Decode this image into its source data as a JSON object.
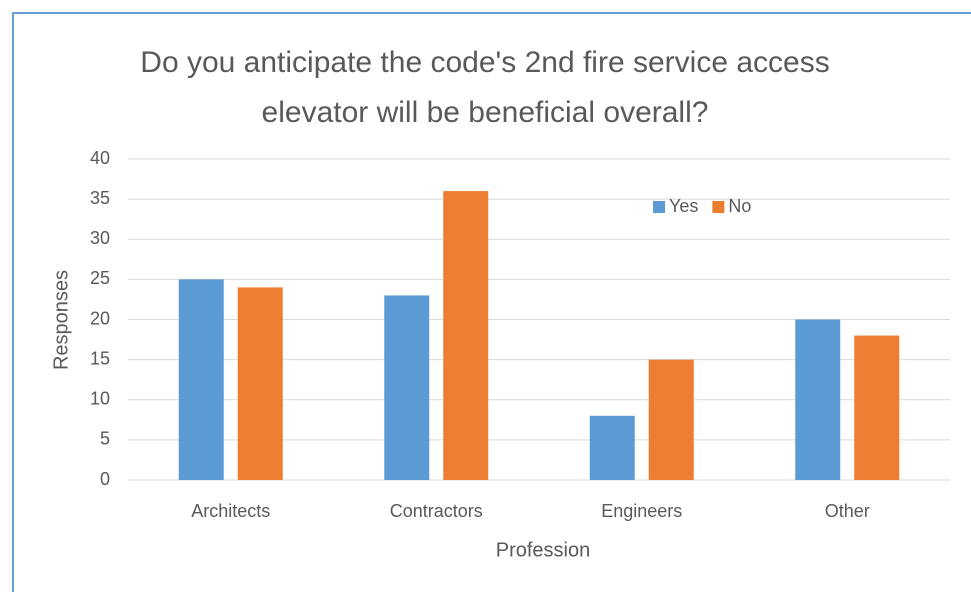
{
  "chart_data": {
    "type": "bar",
    "title": "Do you anticipate the code's 2nd fire service access elevator will be beneficial overall?",
    "x_label": "Profession",
    "y_label": "Responses",
    "categories": [
      "Architects",
      "Contractors",
      "Engineers",
      "Other"
    ],
    "series": [
      {
        "name": "Yes",
        "color": "#5b9bd5",
        "values": [
          25,
          23,
          8,
          20
        ]
      },
      {
        "name": "No",
        "color": "#ed7d31",
        "values": [
          24,
          36,
          15,
          18
        ]
      }
    ],
    "ylim": [
      0,
      40
    ],
    "yticks": [
      0,
      5,
      10,
      15,
      20,
      25,
      30,
      35,
      40
    ],
    "grid": true,
    "legend": "top-right"
  }
}
